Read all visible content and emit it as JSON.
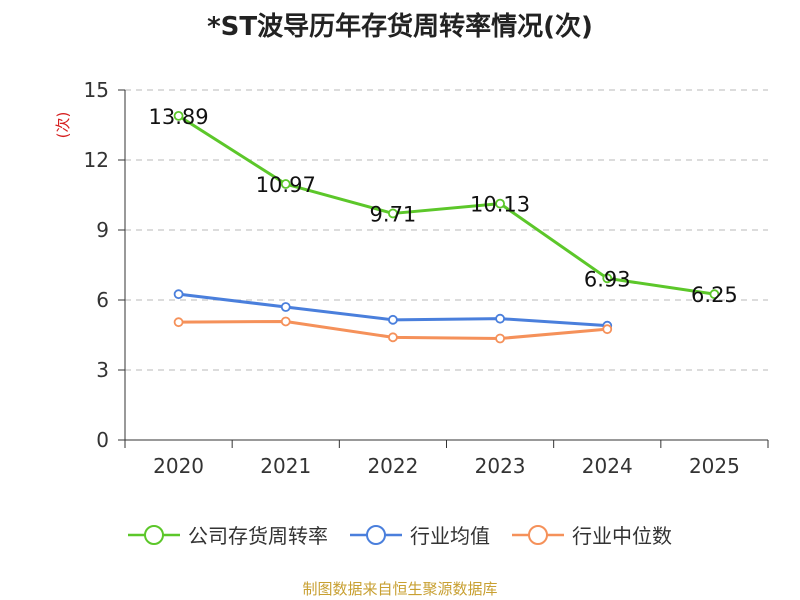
{
  "chart_data": {
    "type": "line",
    "title": "*ST波导历年存货周转率情况(次)",
    "ylabel": "(次)",
    "xlabel": "",
    "categories": [
      "2020",
      "2021",
      "2022",
      "2023",
      "2024",
      "2025"
    ],
    "ylim": [
      0,
      15
    ],
    "yticks": [
      0,
      3,
      6,
      9,
      12,
      15
    ],
    "grid": true,
    "legend_position": "bottom",
    "series": [
      {
        "name": "公司存货周转率",
        "color": "#5cc72a",
        "values": [
          13.89,
          10.97,
          9.71,
          10.13,
          6.93,
          6.25
        ],
        "labels": [
          "13.89",
          "10.97",
          "9.71",
          "10.13",
          "6.93",
          "6.25"
        ]
      },
      {
        "name": "行业均值",
        "color": "#4a7fdc",
        "values": [
          6.25,
          5.7,
          5.15,
          5.2,
          4.9,
          null
        ]
      },
      {
        "name": "行业中位数",
        "color": "#f5915a",
        "values": [
          5.05,
          5.08,
          4.4,
          4.35,
          4.75,
          null
        ]
      }
    ]
  },
  "source": "制图数据来自恒生聚源数据库"
}
